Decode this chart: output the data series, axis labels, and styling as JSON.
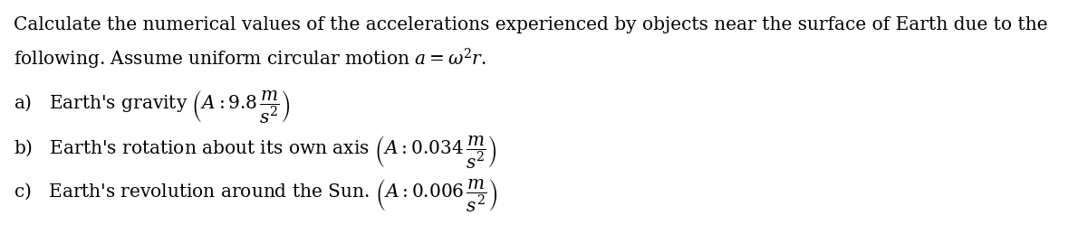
{
  "figsize": [
    12.0,
    2.49
  ],
  "dpi": 100,
  "bg_color": "#ffffff",
  "text_color": "#000000",
  "font_size": 14.5,
  "line1": "Calculate the numerical values of the accelerations experienced by objects near the surface of Earth due to the",
  "line2": "following. Assume uniform circular motion $a = \\omega^2r$.",
  "items": [
    {
      "line": "a)   Earth's gravity $\\left(A: 9.8\\,\\dfrac{m}{s^2}\\right)$"
    },
    {
      "line": "b)   Earth's rotation about its own axis $\\left(A: 0.034\\,\\dfrac{m}{s^2}\\right)$"
    },
    {
      "line": "c)   Earth's revolution around the Sun. $\\left(A: 0.006\\,\\dfrac{m}{s^2}\\right)$"
    }
  ]
}
